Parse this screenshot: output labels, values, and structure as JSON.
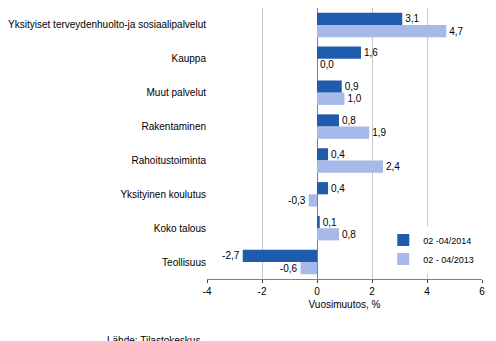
{
  "chart_data": {
    "type": "bar",
    "orientation": "horizontal",
    "categories": [
      "Yksityiset terveydenhuolto-ja sosiaalipalvelut",
      "Kauppa",
      "Muut palvelut",
      "Rakentaminen",
      "Rahoitustoiminta",
      "Yksityinen koulutus",
      "Koko talous",
      "Teollisuus"
    ],
    "series": [
      {
        "name": "02 -04/2014",
        "color": "#1f5cad",
        "values": [
          3.1,
          1.6,
          0.9,
          0.8,
          0.4,
          0.4,
          0.1,
          -2.7
        ],
        "value_labels": [
          "3,1",
          "1,6",
          "0,9",
          "0,8",
          "0,4",
          "0,4",
          "0,1",
          "-2,7"
        ]
      },
      {
        "name": "02 - 04/2013",
        "color": "#a6b9e9",
        "values": [
          4.7,
          0.0,
          1.0,
          1.9,
          2.4,
          -0.3,
          0.8,
          -0.6
        ],
        "value_labels": [
          "4,7",
          "0,0",
          "1,0",
          "1,9",
          "2,4",
          "-0,3",
          "0,8",
          "-0,6"
        ]
      }
    ],
    "x_label": "Vuosimuutos, %",
    "annotations": [
      "Lähde: Tilastokeskus"
    ],
    "xlim": [
      -4,
      6
    ],
    "xticks": [
      -4,
      -2,
      0,
      2,
      4,
      6
    ],
    "grid": true,
    "data_labels": true,
    "legend": "lower right"
  }
}
